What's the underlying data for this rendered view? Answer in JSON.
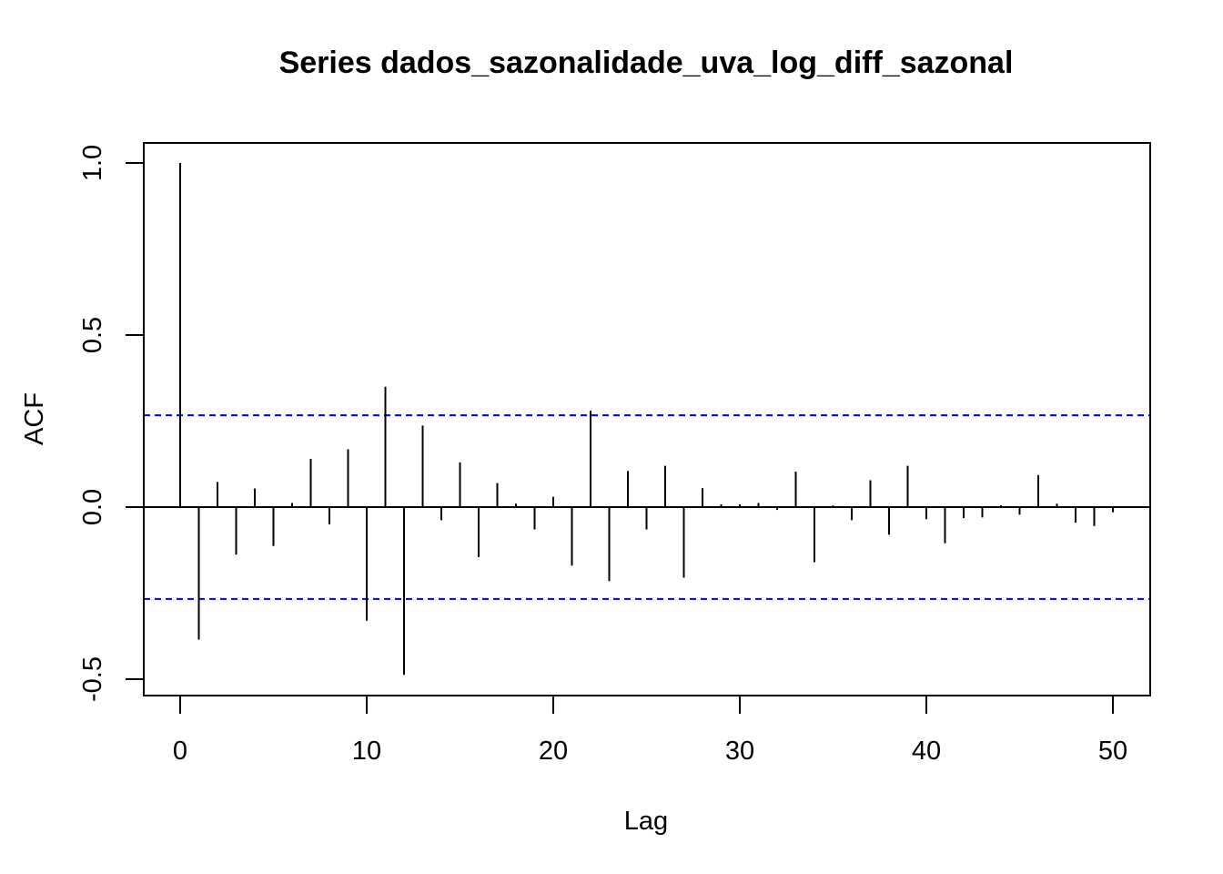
{
  "chart_data": {
    "type": "bar",
    "title": "Series  dados_sazonalidade_uva_log_diff_sazonal",
    "xlabel": "Lag",
    "ylabel": "ACF",
    "xlim": [
      0,
      50
    ],
    "ylim": [
      -0.5,
      1.0
    ],
    "x_ticks": [
      "0",
      "10",
      "20",
      "30",
      "40",
      "50"
    ],
    "y_ticks": [
      "-0.5",
      "0.0",
      "0.5",
      "1.0"
    ],
    "confidence_bounds": {
      "upper": 0.267,
      "lower": -0.267,
      "color": "#0000FF",
      "style": "dashed"
    },
    "zero_line": 0,
    "lags": [
      0,
      1,
      2,
      3,
      4,
      5,
      6,
      7,
      8,
      9,
      10,
      11,
      12,
      13,
      14,
      15,
      16,
      17,
      18,
      19,
      20,
      21,
      22,
      23,
      24,
      25,
      26,
      27,
      28,
      29,
      30,
      31,
      32,
      33,
      34,
      35,
      36,
      37,
      38,
      39,
      40,
      41,
      42,
      43,
      44,
      45,
      46,
      47,
      48,
      49,
      50
    ],
    "values": [
      1.0,
      -0.385,
      0.073,
      -0.138,
      0.054,
      -0.113,
      0.012,
      0.14,
      -0.05,
      0.168,
      -0.33,
      0.35,
      -0.487,
      0.237,
      -0.038,
      0.13,
      -0.145,
      0.07,
      0.01,
      -0.065,
      0.03,
      -0.17,
      0.28,
      -0.215,
      0.105,
      -0.065,
      0.12,
      -0.205,
      0.055,
      0.008,
      0.008,
      0.012,
      -0.008,
      0.103,
      -0.16,
      0.005,
      -0.038,
      0.078,
      -0.08,
      0.12,
      -0.035,
      -0.105,
      -0.032,
      -0.03,
      0.005,
      -0.022,
      0.093,
      0.01,
      -0.045,
      -0.055,
      -0.015
    ]
  }
}
